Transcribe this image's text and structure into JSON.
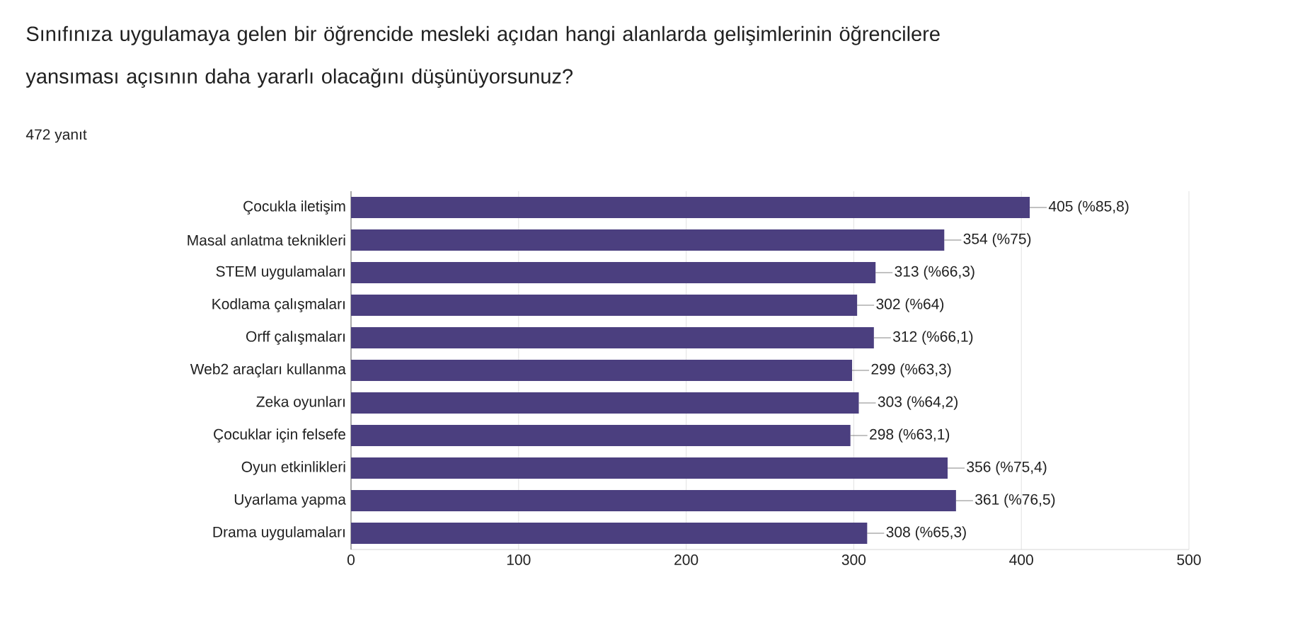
{
  "chart_data": {
    "type": "bar",
    "orientation": "horizontal",
    "title": "Sınıfınıza uygulamaya gelen bir öğrencide mesleki açıdan hangi alanlarda gelişimlerinin öğrencilere yansıması açısının daha yararlı olacağını düşünüyorsunuz?",
    "subtitle": "472 yanıt",
    "categories": [
      "Çocukla iletişim",
      "Masal anlatma teknikleri",
      "STEM uygulamaları",
      "Kodlama çalışmaları",
      "Orff çalışmaları",
      "Web2 araçları kullanma",
      "Zeka oyunları",
      "Çocuklar için felsefe",
      "Oyun etkinlikleri",
      "Uyarlama yapma",
      "Drama uygulamaları"
    ],
    "values": [
      405,
      354,
      313,
      302,
      312,
      299,
      303,
      298,
      356,
      361,
      308
    ],
    "value_labels": [
      "405 (%85,8)",
      "354 (%75)",
      "313 (%66,3)",
      "302 (%64)",
      "312 (%66,1)",
      "299 (%63,3)",
      "303 (%64,2)",
      "298 (%63,1)",
      "356 (%75,4)",
      "361 (%76,5)",
      "308 (%65,3)"
    ],
    "color": "#4b3f7f",
    "xlim": [
      0,
      500
    ],
    "xticks": [
      0,
      100,
      200,
      300,
      400,
      500
    ],
    "grid": "x"
  }
}
